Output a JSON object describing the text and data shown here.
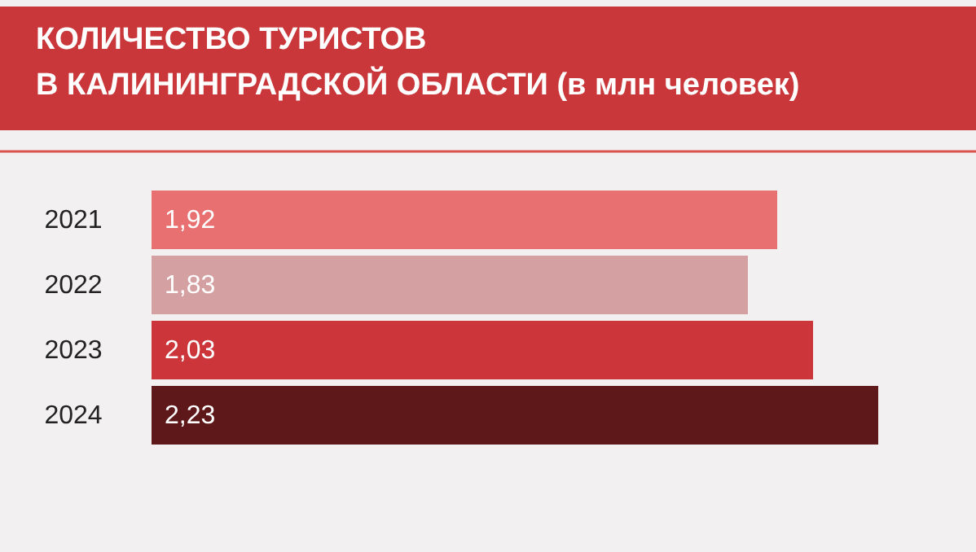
{
  "chart_data": {
    "type": "bar",
    "orientation": "horizontal",
    "title": "КОЛИЧЕСТВО ТУРИСТОВ\nВ КАЛИНИНГРАДСКОЙ ОБЛАСТИ (в млн человек)",
    "categories": [
      "2021",
      "2022",
      "2023",
      "2024"
    ],
    "values": [
      1.92,
      1.83,
      2.03,
      2.23
    ],
    "value_labels": [
      "1,92",
      "1,83",
      "2,03",
      "2,23"
    ],
    "colors": [
      "#e87070",
      "#d4a0a2",
      "#cc363a",
      "#5e1819"
    ],
    "tick_labels": "y"
  }
}
